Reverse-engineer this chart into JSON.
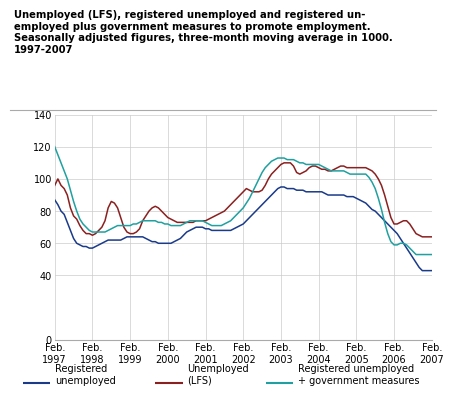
{
  "title_lines": [
    "Unemployed (LFS), registered unemployed and registered un-",
    "employed plus government measures to promote employment.",
    "Seasonally adjusted figures, three-month moving average in 1000.",
    "1997-2007"
  ],
  "ylim": [
    0,
    140
  ],
  "yticks": [
    0,
    40,
    60,
    80,
    100,
    120,
    140
  ],
  "xlabel_ticks": [
    "Feb.\n1997",
    "Feb.\n1998",
    "Feb.\n1999",
    "Feb.\n2000",
    "Feb.\n2001",
    "Feb.\n2002",
    "Feb.\n2003",
    "Feb.\n2004",
    "Feb.\n2005",
    "Feb.\n2006",
    "Feb.\n2007"
  ],
  "legend": [
    {
      "label": "Registered\nunemployed",
      "color": "#1a3a8a"
    },
    {
      "label": "Unemployed\n(LFS)",
      "color": "#8b2020"
    },
    {
      "label": "Registered unemployed\n+ government measures",
      "color": "#20a0a0"
    }
  ],
  "registered_unemployed": [
    87,
    84,
    80,
    78,
    73,
    68,
    63,
    60,
    59,
    58,
    58,
    57,
    57,
    58,
    59,
    60,
    61,
    62,
    62,
    62,
    62,
    62,
    63,
    64,
    64,
    64,
    64,
    64,
    64,
    63,
    62,
    61,
    61,
    60,
    60,
    60,
    60,
    60,
    61,
    62,
    63,
    65,
    67,
    68,
    69,
    70,
    70,
    70,
    69,
    69,
    68,
    68,
    68,
    68,
    68,
    68,
    68,
    69,
    70,
    71,
    72,
    74,
    76,
    78,
    80,
    82,
    84,
    86,
    88,
    90,
    92,
    94,
    95,
    95,
    94,
    94,
    94,
    93,
    93,
    93,
    92,
    92,
    92,
    92,
    92,
    92,
    91,
    90,
    90,
    90,
    90,
    90,
    90,
    89,
    89,
    89,
    88,
    87,
    86,
    85,
    83,
    81,
    80,
    78,
    76,
    74,
    72,
    70,
    68,
    66,
    63,
    60,
    57,
    54,
    51,
    48,
    45,
    43,
    43,
    43,
    43
  ],
  "unemployed_lfs": [
    96,
    100,
    96,
    94,
    90,
    82,
    77,
    75,
    71,
    68,
    66,
    66,
    65,
    66,
    68,
    70,
    74,
    82,
    86,
    85,
    82,
    76,
    70,
    67,
    66,
    66,
    67,
    69,
    74,
    77,
    80,
    82,
    83,
    82,
    80,
    78,
    76,
    75,
    74,
    73,
    73,
    73,
    73,
    73,
    73,
    74,
    74,
    74,
    74,
    75,
    76,
    77,
    78,
    79,
    80,
    82,
    84,
    86,
    88,
    90,
    92,
    94,
    93,
    92,
    92,
    92,
    93,
    96,
    100,
    103,
    105,
    107,
    109,
    110,
    110,
    110,
    108,
    104,
    103,
    104,
    105,
    107,
    108,
    108,
    107,
    106,
    106,
    105,
    105,
    106,
    107,
    108,
    108,
    107,
    107,
    107,
    107,
    107,
    107,
    107,
    106,
    105,
    103,
    100,
    96,
    90,
    83,
    76,
    72,
    72,
    73,
    74,
    74,
    72,
    69,
    66,
    65,
    64,
    64,
    64,
    64
  ],
  "registered_plus_gov": [
    120,
    115,
    110,
    105,
    100,
    93,
    86,
    80,
    75,
    72,
    70,
    68,
    67,
    67,
    67,
    67,
    67,
    68,
    69,
    70,
    71,
    71,
    71,
    71,
    71,
    72,
    72,
    73,
    74,
    74,
    74,
    74,
    74,
    73,
    73,
    72,
    72,
    71,
    71,
    71,
    71,
    72,
    73,
    74,
    74,
    74,
    74,
    74,
    73,
    72,
    71,
    71,
    71,
    71,
    72,
    73,
    74,
    76,
    78,
    80,
    82,
    85,
    88,
    92,
    96,
    100,
    104,
    107,
    109,
    111,
    112,
    113,
    113,
    113,
    112,
    112,
    112,
    111,
    110,
    110,
    109,
    109,
    109,
    109,
    109,
    108,
    107,
    106,
    105,
    105,
    105,
    105,
    105,
    104,
    103,
    103,
    103,
    103,
    103,
    103,
    101,
    98,
    94,
    88,
    81,
    73,
    66,
    61,
    59,
    59,
    60,
    60,
    59,
    57,
    55,
    53,
    53,
    53,
    53,
    53,
    53
  ],
  "n_points": 121,
  "background_color": "#ffffff",
  "grid_color": "#cccccc"
}
